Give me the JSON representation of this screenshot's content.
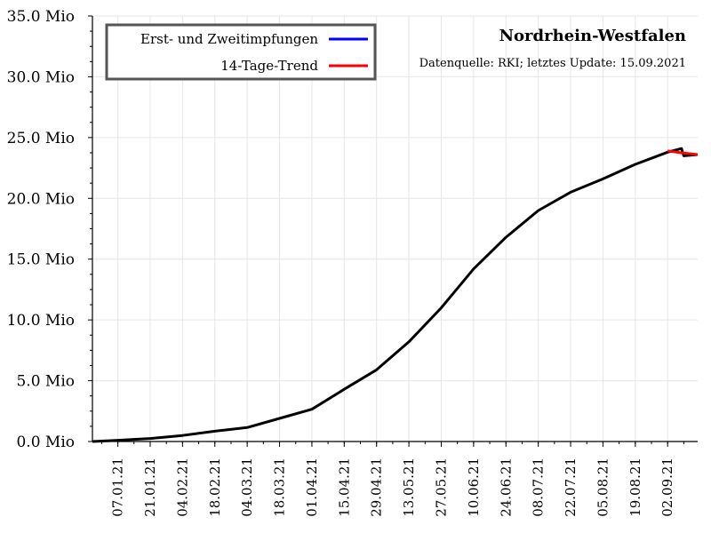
{
  "chart_data": {
    "type": "line",
    "title": "Nordrhein-Westfalen",
    "subtitle": "Datenquelle: RKI; letztes Update: 15.09.2021",
    "xlabel": "",
    "ylabel": "",
    "ylim": [
      0,
      35000000
    ],
    "x_range": [
      "2020-12-27",
      "2021-09-15"
    ],
    "grid": true,
    "legend_position": "top-left",
    "yticks": [
      {
        "value": 0,
        "label": "0.0 Mio"
      },
      {
        "value": 5000000,
        "label": "5.0 Mio"
      },
      {
        "value": 10000000,
        "label": "10.0 Mio"
      },
      {
        "value": 15000000,
        "label": "15.0 Mio"
      },
      {
        "value": 20000000,
        "label": "20.0 Mio"
      },
      {
        "value": 25000000,
        "label": "25.0 Mio"
      },
      {
        "value": 30000000,
        "label": "30.0 Mio"
      },
      {
        "value": 35000000,
        "label": "35.0 Mio"
      }
    ],
    "xticks": [
      {
        "date": "2021-01-07",
        "label": "07.01.21"
      },
      {
        "date": "2021-01-21",
        "label": "21.01.21"
      },
      {
        "date": "2021-02-04",
        "label": "04.02.21"
      },
      {
        "date": "2021-02-18",
        "label": "18.02.21"
      },
      {
        "date": "2021-03-04",
        "label": "04.03.21"
      },
      {
        "date": "2021-03-18",
        "label": "18.03.21"
      },
      {
        "date": "2021-04-01",
        "label": "01.04.21"
      },
      {
        "date": "2021-04-15",
        "label": "15.04.21"
      },
      {
        "date": "2021-04-29",
        "label": "29.04.21"
      },
      {
        "date": "2021-05-13",
        "label": "13.05.21"
      },
      {
        "date": "2021-05-27",
        "label": "27.05.21"
      },
      {
        "date": "2021-06-10",
        "label": "10.06.21"
      },
      {
        "date": "2021-06-24",
        "label": "24.06.21"
      },
      {
        "date": "2021-07-08",
        "label": "08.07.21"
      },
      {
        "date": "2021-07-22",
        "label": "22.07.21"
      },
      {
        "date": "2021-08-05",
        "label": "05.08.21"
      },
      {
        "date": "2021-08-19",
        "label": "19.08.21"
      },
      {
        "date": "2021-09-02",
        "label": "02.09.21"
      }
    ],
    "series": [
      {
        "name": "Erst- und Zweitimpfungen",
        "legend_color": "#0000ff",
        "line_color": "#000000",
        "points": [
          {
            "date": "2020-12-27",
            "value": 0
          },
          {
            "date": "2021-01-07",
            "value": 100000
          },
          {
            "date": "2021-01-21",
            "value": 250000
          },
          {
            "date": "2021-02-04",
            "value": 500000
          },
          {
            "date": "2021-02-18",
            "value": 850000
          },
          {
            "date": "2021-03-04",
            "value": 1150000
          },
          {
            "date": "2021-03-18",
            "value": 1900000
          },
          {
            "date": "2021-04-01",
            "value": 2650000
          },
          {
            "date": "2021-04-15",
            "value": 4300000
          },
          {
            "date": "2021-04-29",
            "value": 5900000
          },
          {
            "date": "2021-05-13",
            "value": 8200000
          },
          {
            "date": "2021-05-27",
            "value": 11000000
          },
          {
            "date": "2021-06-10",
            "value": 14200000
          },
          {
            "date": "2021-06-24",
            "value": 16800000
          },
          {
            "date": "2021-07-08",
            "value": 19000000
          },
          {
            "date": "2021-07-22",
            "value": 20500000
          },
          {
            "date": "2021-08-05",
            "value": 21600000
          },
          {
            "date": "2021-08-19",
            "value": 22800000
          },
          {
            "date": "2021-09-02",
            "value": 23800000
          },
          {
            "date": "2021-09-08",
            "value": 24100000
          },
          {
            "date": "2021-09-09",
            "value": 23500000
          },
          {
            "date": "2021-09-15",
            "value": 23600000
          }
        ]
      },
      {
        "name": "14-Tage-Trend",
        "legend_color": "#ff0000",
        "line_color": "#ff0000",
        "points": [
          {
            "date": "2021-09-02",
            "value": 23900000
          },
          {
            "date": "2021-09-08",
            "value": 23750000
          },
          {
            "date": "2021-09-15",
            "value": 23600000
          }
        ]
      }
    ]
  }
}
